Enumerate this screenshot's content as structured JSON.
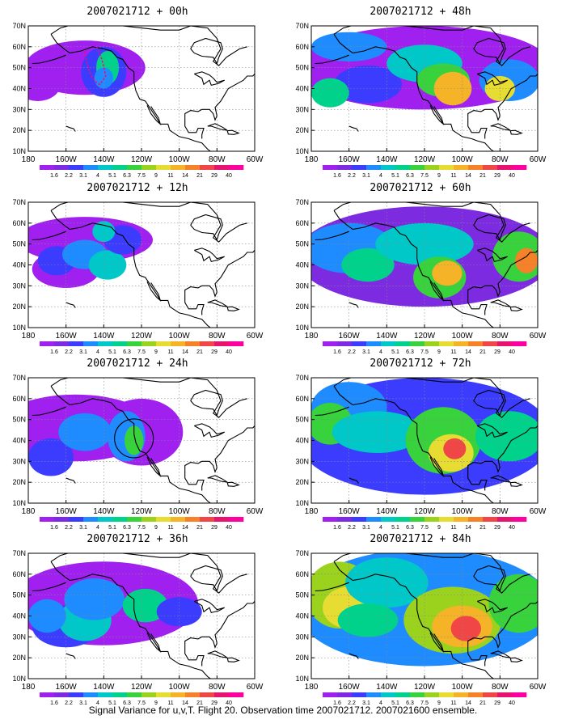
{
  "figure": {
    "caption": "Signal Variance for u,v,T. Flight 20. Observation time 2007021712. 2007021600 ensemble."
  },
  "axes": {
    "lat_labels": [
      "70N",
      "60N",
      "50N",
      "40N",
      "30N",
      "20N",
      "10N"
    ],
    "lon_labels": [
      "180",
      "160W",
      "140W",
      "120W",
      "100W",
      "80W",
      "60W"
    ]
  },
  "colorbar": {
    "labels": [
      "1.6",
      "2.2",
      "3.1",
      "4",
      "5.1",
      "6.3",
      "7.5",
      "9",
      "11",
      "14",
      "21",
      "29",
      "40"
    ],
    "colors": [
      "#a020f0",
      "#7c2be0",
      "#3c3cff",
      "#1e8cff",
      "#00c8c8",
      "#00d28c",
      "#38d23c",
      "#9ad21e",
      "#e6dc32",
      "#f5b428",
      "#f58228",
      "#f04646",
      "#e6146e",
      "#ff00a0"
    ]
  },
  "panels": [
    {
      "title": "2007021712 + 00h",
      "level": 0
    },
    {
      "title": "2007021712 + 12h",
      "level": 1
    },
    {
      "title": "2007021712 + 24h",
      "level": 2
    },
    {
      "title": "2007021712 + 36h",
      "level": 3
    },
    {
      "title": "2007021712 + 48h",
      "level": 4
    },
    {
      "title": "2007021712 + 60h",
      "level": 5
    },
    {
      "title": "2007021712 + 72h",
      "level": 6
    },
    {
      "title": "2007021712 + 84h",
      "level": 7
    }
  ]
}
